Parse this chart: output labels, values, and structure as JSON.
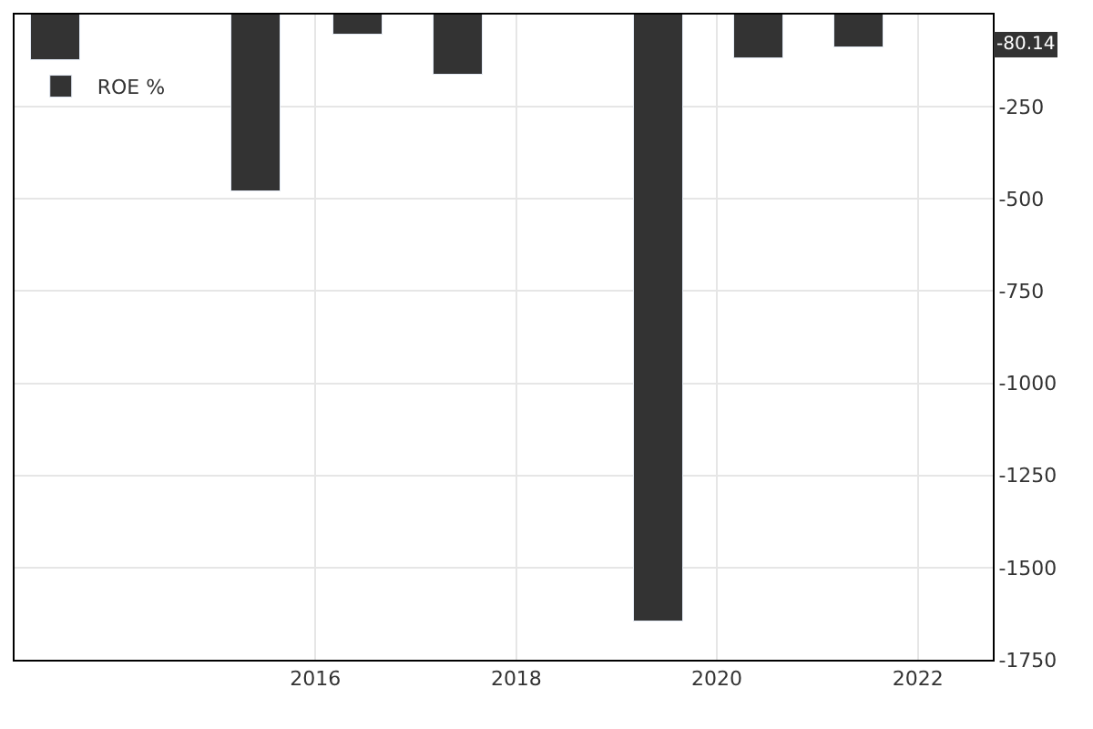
{
  "chart_data": {
    "type": "bar",
    "x": [
      "2013-06",
      "2015-06",
      "2016-06",
      "2017-06",
      "2019-06",
      "2020-06",
      "2021-06"
    ],
    "series": [
      {
        "name": "ROE %",
        "color": "#333333",
        "values": [
          -122,
          -480,
          -54,
          -162,
          -1646,
          -118,
          -88
        ]
      }
    ],
    "xlim": [
      "2013-01",
      "2022-10"
    ],
    "xticks": [
      "2016",
      "2018",
      "2020",
      "2022"
    ],
    "ylim": [
      -1750,
      0
    ],
    "yticks": [
      -250,
      -500,
      -750,
      -1000,
      -1250,
      -1500,
      -1750
    ],
    "annotations": [
      {
        "text": "-80.14",
        "y": -80.14
      }
    ],
    "grid": true,
    "legend": "top left"
  }
}
